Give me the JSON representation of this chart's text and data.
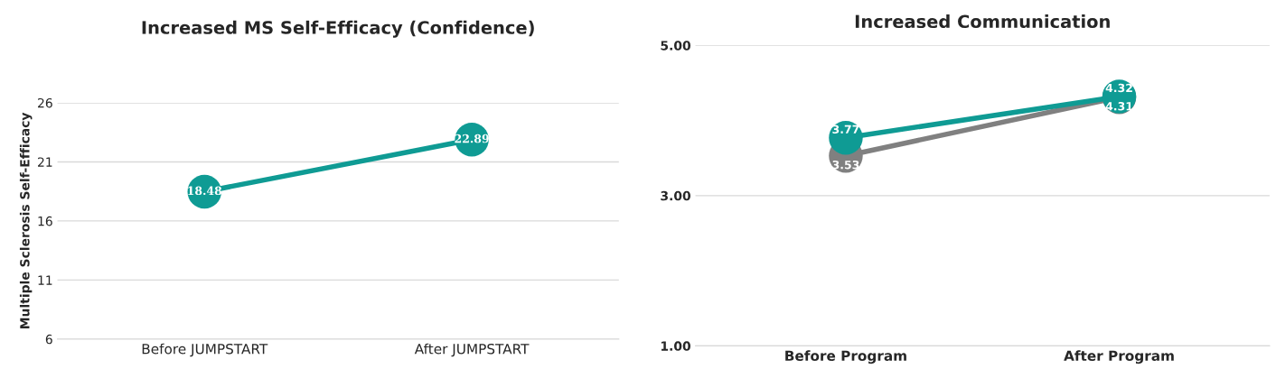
{
  "chart_data": [
    {
      "type": "line",
      "title": "Increased MS Self-Efficacy (Confidence)",
      "ylabel": "Multiple Sclerosis Self-Efficacy",
      "categories": [
        "Before JUMPSTART",
        "After JUMPSTART"
      ],
      "series": [
        {
          "color": "#0f9b94",
          "values": [
            18.48,
            22.89
          ]
        }
      ],
      "ylim": [
        6,
        26
      ],
      "yticks": [
        6,
        11,
        16,
        21,
        26
      ],
      "grid": "y",
      "marker": "circle",
      "data_labels": true,
      "legend": false
    },
    {
      "type": "line",
      "title": "Increased Communication",
      "categories": [
        "Before Program",
        "After Program"
      ],
      "series": [
        {
          "color": "#808080",
          "values": [
            3.53,
            4.31
          ]
        },
        {
          "color": "#0f9b94",
          "values": [
            3.77,
            4.32
          ]
        }
      ],
      "ylim": [
        1,
        5
      ],
      "yticks": [
        {
          "value": 1,
          "label": "1.00"
        },
        {
          "value": 3,
          "label": "3.00"
        },
        {
          "value": 5,
          "label": "5.00"
        }
      ],
      "grid": "y",
      "marker": "circle",
      "data_labels": true,
      "legend": false
    }
  ]
}
